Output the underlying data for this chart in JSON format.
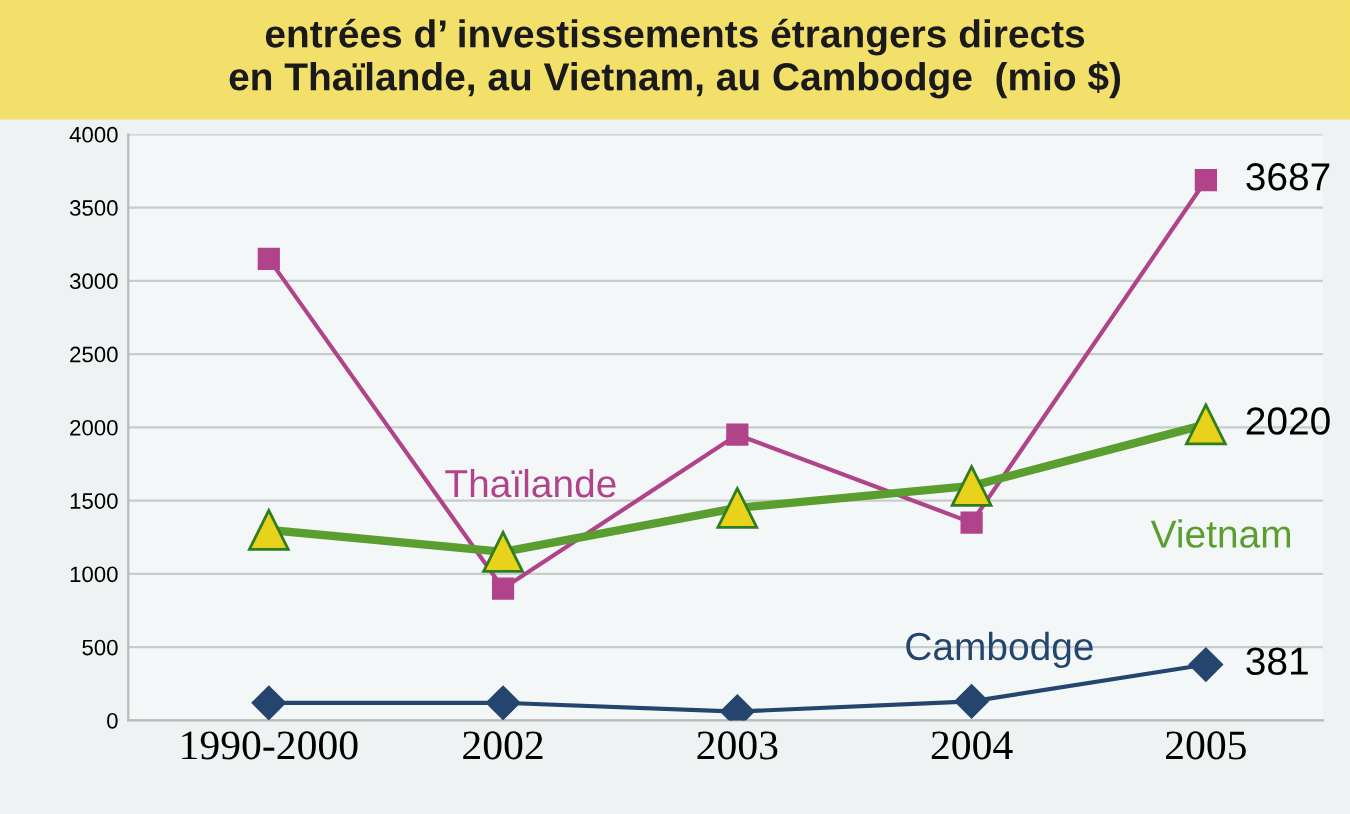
{
  "chart_data": {
    "type": "line",
    "title": "entrées d’ investissements étrangers directs\nen Thaïlande, au Vietnam, au Cambodge  (mio $)",
    "categories": [
      "1990-2000",
      "2002",
      "2003",
      "2004",
      "2005"
    ],
    "series": [
      {
        "name": "Thaïlande",
        "color": "#b0438a",
        "marker": "square",
        "values": [
          3150,
          900,
          1950,
          1350,
          3687
        ],
        "value_labels": [
          null,
          null,
          null,
          null,
          "3687"
        ]
      },
      {
        "name": "Vietnam",
        "color": "#5a9e2f",
        "marker": "triangle",
        "values": [
          1300,
          1150,
          1450,
          1600,
          2020
        ],
        "value_labels": [
          null,
          null,
          null,
          null,
          "2020"
        ]
      },
      {
        "name": "Cambodge",
        "color": "#24466e",
        "marker": "diamond",
        "values": [
          120,
          120,
          60,
          130,
          381
        ],
        "value_labels": [
          null,
          null,
          null,
          null,
          "381"
        ]
      }
    ],
    "ylim": [
      0,
      4000
    ],
    "yticks": [
      0,
      500,
      1000,
      1500,
      2000,
      2500,
      3000,
      3500,
      4000
    ],
    "grid": "y",
    "legend": false
  }
}
